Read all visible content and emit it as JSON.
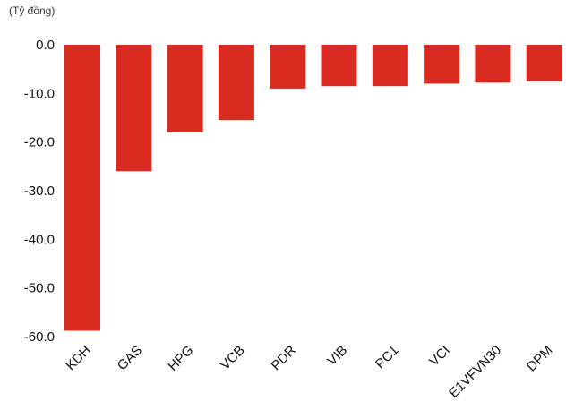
{
  "unit_label": "(Tỷ đồng)",
  "colors": {
    "bar": "#d92b20",
    "text": "#111111"
  },
  "chart_data": {
    "type": "bar",
    "title": "",
    "xlabel": "",
    "ylabel": "(Tỷ đồng)",
    "categories": [
      "KDH",
      "GAS",
      "HPG",
      "VCB",
      "PDR",
      "VIB",
      "PC1",
      "VCI",
      "E1VFVN30",
      "DPM"
    ],
    "values": [
      -58.8,
      -26.0,
      -18.0,
      -15.5,
      -9.0,
      -8.5,
      -8.5,
      -8.0,
      -7.8,
      -7.5
    ],
    "ylim": [
      -60,
      0
    ],
    "yticks": [
      0,
      -10,
      -20,
      -30,
      -40,
      -50,
      -60
    ],
    "ytick_labels": [
      "0.0",
      "-10.0",
      "-20.0",
      "-30.0",
      "-40.0",
      "-50.0",
      "-60.0"
    ],
    "grid": false,
    "legend": "none"
  }
}
